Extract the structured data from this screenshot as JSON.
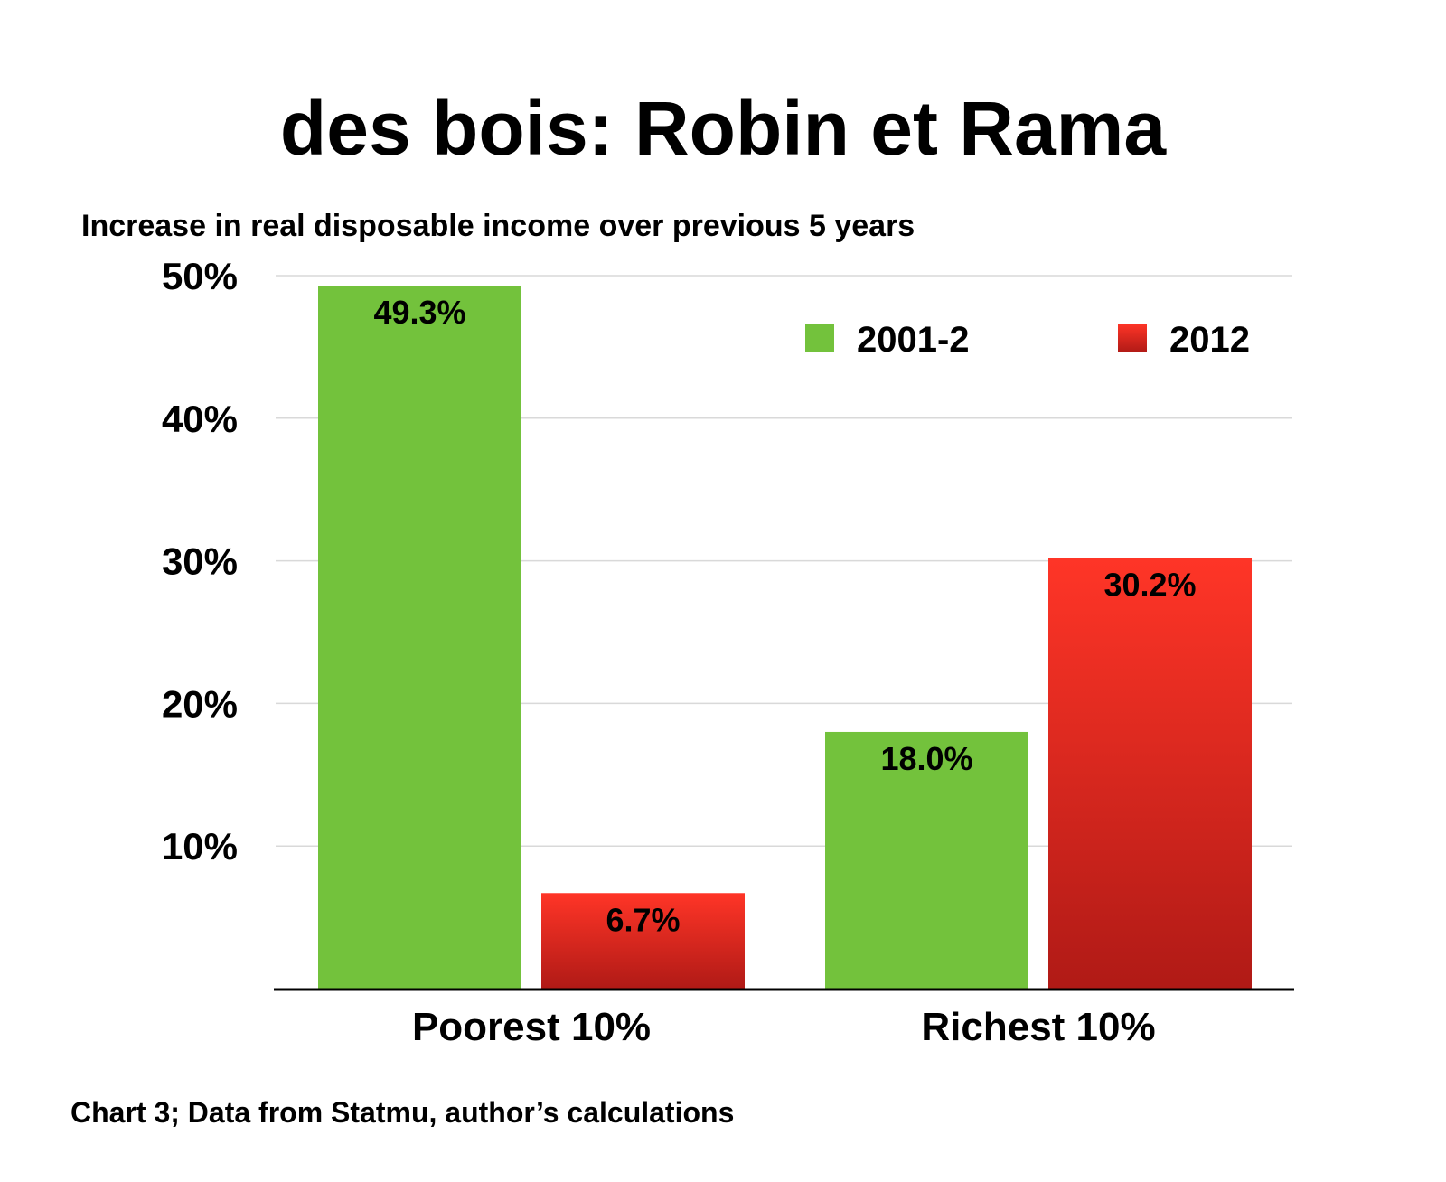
{
  "title": "des bois: Robin et Rama",
  "subtitle": "Increase in real disposable income over previous 5 years",
  "footnote": "Chart 3; Data from Statmu, author’s calculations",
  "colors": {
    "series_2001_2": "#73c23c",
    "series_2012_top": "#ff3527",
    "series_2012_bottom": "#b01a16",
    "gridline": "#d9d9d9",
    "axis": "#000000"
  },
  "chart_data": {
    "type": "bar",
    "categories": [
      "Poorest 10%",
      "Richest 10%"
    ],
    "series": [
      {
        "name": "2001-2",
        "values": [
          49.3,
          18.0
        ],
        "labels": [
          "49.3%",
          "18.0%"
        ]
      },
      {
        "name": "2012",
        "values": [
          6.7,
          30.2
        ],
        "labels": [
          "6.7%",
          "30.2%"
        ]
      }
    ],
    "y_ticks": [
      {
        "value": 10,
        "label": "10%"
      },
      {
        "value": 20,
        "label": "20%"
      },
      {
        "value": 30,
        "label": "30%"
      },
      {
        "value": 40,
        "label": "40%"
      },
      {
        "value": 50,
        "label": "50%"
      }
    ],
    "ylim": [
      0,
      50
    ],
    "grid": true,
    "legend_position": "top-right",
    "xlabel": "",
    "ylabel": ""
  }
}
